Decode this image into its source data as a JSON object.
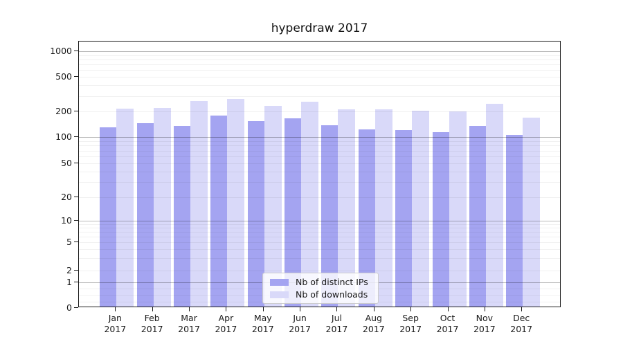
{
  "title": "hyperdraw 2017",
  "chart_data": {
    "type": "bar",
    "title": "hyperdraw 2017",
    "yscale": "symlog",
    "ylim": [
      0,
      1300
    ],
    "grid": true,
    "legend_position": "lower center (inside plot)",
    "yticks": [
      0,
      1,
      2,
      5,
      10,
      20,
      50,
      100,
      200,
      500,
      1000
    ],
    "categories": [
      "Jan",
      "Feb",
      "Mar",
      "Apr",
      "May",
      "Jun",
      "Jul",
      "Aug",
      "Sep",
      "Oct",
      "Nov",
      "Dec"
    ],
    "x_sub_label": "2017",
    "series": [
      {
        "name": "Nb of distinct IPs",
        "color": "#a4a4f1",
        "values": [
          125,
          141,
          129,
          171,
          148,
          161,
          132,
          119,
          117,
          110,
          131,
          101
        ]
      },
      {
        "name": "Nb of downloads",
        "color": "#d9d9f9",
        "values": [
          208,
          212,
          253,
          270,
          223,
          247,
          204,
          202,
          198,
          194,
          236,
          162
        ]
      }
    ]
  }
}
